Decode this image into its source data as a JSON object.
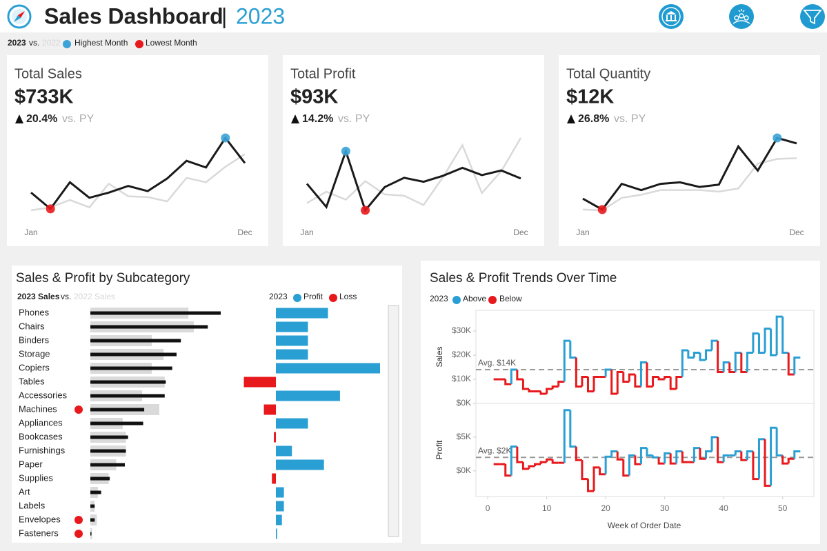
{
  "header": {
    "title": "Sales Dashboard",
    "separator": "|",
    "year": "2023"
  },
  "legend": {
    "current": "2023",
    "vs": "vs.",
    "previous": "2022",
    "highest": "Highest Month",
    "lowest": "Lowest Month",
    "highest_color": "#3ba3d6",
    "lowest_color": "#e8191c"
  },
  "chart_data": [
    {
      "type": "kpi",
      "title": "Total Sales",
      "value": "$733K",
      "change": "20.4%",
      "comparison": "vs. PY",
      "categories": [
        "Jan",
        null,
        null,
        null,
        null,
        null,
        null,
        null,
        null,
        null,
        null,
        "Dec"
      ],
      "series": [
        {
          "color": "#1a1a1a",
          "values": [
            42,
            20,
            56,
            35,
            42,
            51,
            44,
            61,
            85,
            76,
            116,
            82
          ]
        },
        {
          "color": "#d9d9d9",
          "values": [
            18,
            22,
            32,
            22,
            54,
            37,
            36,
            30,
            62,
            56,
            77,
            94
          ]
        }
      ]
    },
    {
      "type": "kpi",
      "title": "Total Profit",
      "value": "$93K",
      "change": "14.2%",
      "comparison": "vs. PY",
      "categories": [
        "Jan",
        null,
        null,
        null,
        null,
        null,
        null,
        null,
        null,
        null,
        null,
        "Dec"
      ],
      "series": [
        {
          "color": "#1a1a1a",
          "values": [
            52,
            17,
            101,
            12,
            47,
            61,
            55,
            64,
            76,
            65,
            72,
            60
          ]
        },
        {
          "color": "#d9d9d9",
          "values": [
            23,
            40,
            28,
            56,
            36,
            34,
            20,
            62,
            110,
            38,
            71,
            121
          ]
        }
      ]
    },
    {
      "type": "kpi",
      "title": "Total Quantity",
      "value": "$12K",
      "change": "26.8%",
      "comparison": "vs. PY",
      "categories": [
        "Jan",
        null,
        null,
        null,
        null,
        null,
        null,
        null,
        null,
        null,
        null,
        "Dec"
      ],
      "series": [
        {
          "color": "#1a1a1a",
          "values": [
            37,
            23,
            56,
            48,
            56,
            58,
            52,
            55,
            104,
            73,
            115,
            108
          ]
        },
        {
          "color": "#d9d9d9",
          "values": [
            23,
            22,
            38,
            42,
            48,
            48,
            48,
            46,
            50,
            82,
            88,
            89
          ]
        }
      ]
    },
    {
      "type": "subcategory",
      "title": "Sales & Profit by Subcategory",
      "vs": "vs.",
      "profit_year": "2023",
      "loss_label": "Loss",
      "loss_color": "#e8191c",
      "categories": [
        "Phones",
        "Chairs",
        "Binders",
        "Storage",
        "Copiers",
        "Tables",
        "Accessories",
        "Machines",
        "Appliances",
        "Bookcases",
        "Furnishings",
        "Paper",
        "Supplies",
        "Art",
        "Labels",
        "Envelopes",
        "Fasteners"
      ],
      "series": [
        {
          "name": "2023 Sales",
          "color": "#111111",
          "values": [
            121,
            109,
            84,
            80,
            76,
            70,
            69,
            50,
            49,
            35,
            33,
            32,
            18,
            10,
            4,
            4,
            1
          ]
        },
        {
          "name": "2022 Sales",
          "color": "#dadada",
          "values": [
            91,
            96,
            57,
            68,
            57,
            69,
            48,
            64,
            30,
            33,
            33,
            24,
            17,
            7,
            4,
            6,
            1.5
          ]
        },
        {
          "name": "Profit",
          "color": "#2a9fd3",
          "values": [
            13,
            8,
            8,
            8,
            26,
            -8,
            16,
            -3,
            8,
            -0.5,
            4,
            12,
            -1,
            2,
            2,
            1.5,
            0.3
          ]
        }
      ]
    },
    {
      "type": "step",
      "title": "Sales & Profit Trends Over Time",
      "legend_year": "2023",
      "above": "Above",
      "below": "Below",
      "above_color": "#2a9fd3",
      "below_color": "#e8191c",
      "xlabel": "Week of Order Date",
      "xlim": [
        -2,
        55.3
      ],
      "xticks": [
        0,
        10,
        20,
        30,
        40,
        50
      ],
      "x": [
        1,
        2,
        3,
        4,
        5,
        6,
        7,
        8,
        9,
        10,
        11,
        12,
        13,
        14,
        15,
        16,
        17,
        18,
        19,
        20,
        21,
        22,
        23,
        24,
        25,
        26,
        27,
        28,
        29,
        30,
        31,
        32,
        33,
        34,
        35,
        36,
        37,
        38,
        39,
        40,
        41,
        42,
        43,
        44,
        45,
        46,
        47,
        48,
        49,
        50,
        51,
        52
      ],
      "panels": [
        {
          "ylabel": "Sales",
          "ylim": [
            0,
            38.6
          ],
          "yticks": [
            {
              "value": 0,
              "label": "$0K"
            },
            {
              "value": 10,
              "label": "$10K"
            },
            {
              "value": 20,
              "label": "$20K"
            },
            {
              "value": 30,
              "label": "$30K"
            }
          ],
          "average": {
            "value": 14,
            "label": "Avg. $14K"
          },
          "values": [
            10,
            10,
            8,
            14,
            10,
            6,
            5,
            5,
            4,
            6,
            7,
            9,
            26,
            19,
            7,
            11,
            5,
            11,
            11,
            14,
            4,
            13,
            9,
            12,
            7,
            17,
            7,
            11,
            10,
            11,
            6,
            11,
            22,
            19,
            21,
            18,
            22,
            26,
            13,
            17,
            13,
            21,
            13,
            21,
            29,
            21,
            31,
            20,
            36,
            21,
            12,
            19
          ]
        },
        {
          "ylabel": "Profit",
          "ylim": [
            -3.8,
            10
          ],
          "yticks": [
            {
              "value": 0,
              "label": "$0K"
            },
            {
              "value": 5,
              "label": "$5K"
            }
          ],
          "average": {
            "value": 2,
            "label": "Avg. $2K"
          },
          "values": [
            1,
            1,
            -0.7,
            3.6,
            1.3,
            0.3,
            0.7,
            1,
            1.3,
            1.7,
            1.2,
            1.2,
            9,
            3.6,
            1.6,
            -1.2,
            -3,
            0.5,
            -0.5,
            2.1,
            2.9,
            1.7,
            -0.7,
            2.3,
            1,
            3.4,
            2.3,
            2,
            1.1,
            2.6,
            1.1,
            2.9,
            1.3,
            1.3,
            3.4,
            1.8,
            2.9,
            5,
            1.3,
            2.3,
            2.3,
            2.9,
            1.6,
            2.9,
            -1.2,
            4.7,
            -2.2,
            6.4,
            2.3,
            1.1,
            1.8,
            2.9
          ]
        }
      ]
    }
  ]
}
